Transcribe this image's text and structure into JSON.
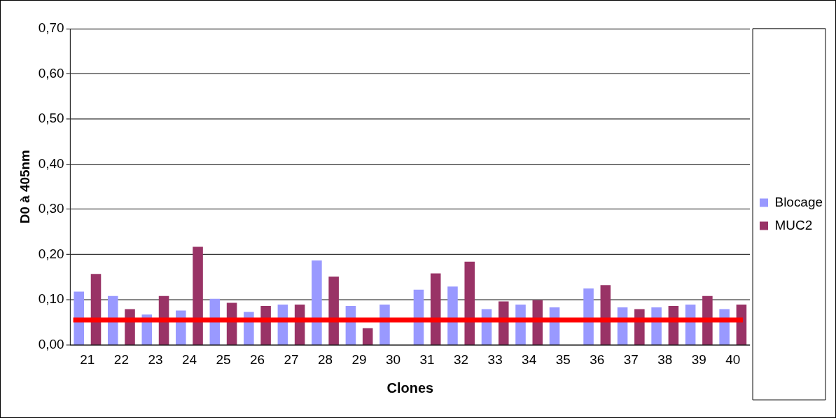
{
  "chart_data": {
    "type": "bar",
    "xlabel": "Clones",
    "ylabel": "D0 à 405nm",
    "categories": [
      "21",
      "22",
      "23",
      "24",
      "25",
      "26",
      "27",
      "28",
      "29",
      "30",
      "31",
      "32",
      "33",
      "34",
      "35",
      "36",
      "37",
      "38",
      "39",
      "40"
    ],
    "series": [
      {
        "name": "Blocage",
        "color": "#9999ff",
        "values": [
          0.118,
          0.108,
          0.067,
          0.076,
          0.102,
          0.073,
          0.089,
          0.187,
          0.086,
          0.089,
          0.122,
          0.129,
          0.079,
          0.089,
          0.083,
          0.125,
          0.083,
          0.083,
          0.089,
          0.079
        ]
      },
      {
        "name": "MUC2",
        "color": "#993366",
        "values": [
          0.157,
          0.079,
          0.108,
          0.217,
          0.093,
          0.086,
          0.089,
          0.151,
          0.037,
          null,
          0.158,
          0.184,
          0.096,
          0.099,
          null,
          0.132,
          0.079,
          0.086,
          0.108,
          0.089
        ]
      }
    ],
    "ylim": [
      0,
      0.7
    ],
    "yticks": [
      {
        "value": 0,
        "label": "0,00"
      },
      {
        "value": 0.1,
        "label": "0,10"
      },
      {
        "value": 0.2,
        "label": "0,20"
      },
      {
        "value": 0.3,
        "label": "0,30"
      },
      {
        "value": 0.4,
        "label": "0,40"
      },
      {
        "value": 0.5,
        "label": "0,50"
      },
      {
        "value": 0.6,
        "label": "0,60"
      },
      {
        "value": 0.7,
        "label": "0,70"
      }
    ],
    "ref_lines": [
      {
        "axis": "y",
        "value": 0.055,
        "color": "#ff0000"
      }
    ],
    "grid": "y",
    "legend": "right"
  }
}
